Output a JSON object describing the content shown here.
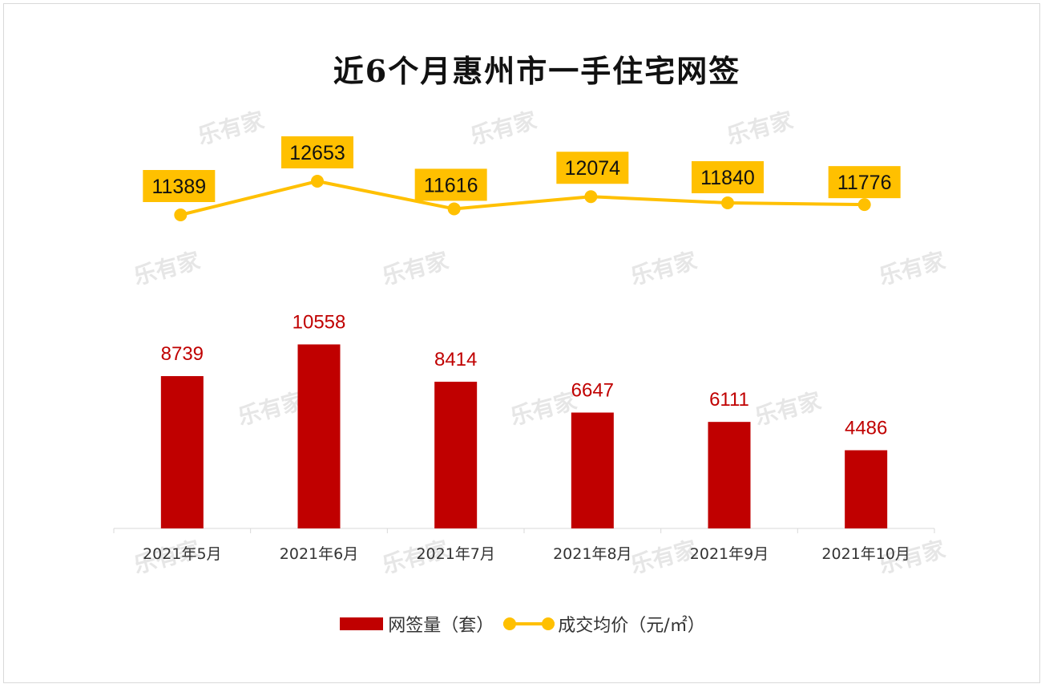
{
  "chart_data": {
    "type": "bar+line",
    "title": "近6个月惠州市一手住宅网签",
    "categories": [
      "2021年5月",
      "2021年6月",
      "2021年7月",
      "2021年8月",
      "2021年9月",
      "2021年10月"
    ],
    "series": [
      {
        "name": "网签量（套）",
        "type": "bar",
        "values": [
          8739,
          10558,
          8414,
          6647,
          6111,
          4486
        ],
        "color": "#c00000",
        "label_color": "#c00000"
      },
      {
        "name": "成交均价（元/㎡）",
        "type": "line",
        "values": [
          11389,
          12653,
          11616,
          12074,
          11840,
          11776
        ],
        "color": "#ffc000",
        "label_bg": "#ffc000"
      }
    ],
    "legend_position": "bottom",
    "grid": false
  },
  "watermark": "乐有家"
}
